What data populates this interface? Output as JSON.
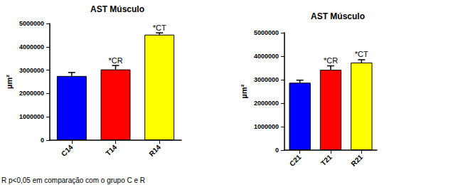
{
  "chart_data": [
    {
      "type": "bar",
      "title": "AST Músculo",
      "y_label": "µm²",
      "categories": [
        "C14",
        "T14",
        "R14"
      ],
      "values": [
        2750000,
        3030000,
        4520000
      ],
      "errors": [
        150000,
        170000,
        80000
      ],
      "colors": [
        "#0000ff",
        "#ff0000",
        "#ffff00"
      ],
      "ylim": [
        0,
        5000000
      ],
      "yticks": [
        0,
        1000000,
        2000000,
        3000000,
        4000000,
        5000000
      ],
      "annotations": [
        {
          "category": "T14",
          "text": "*CR"
        },
        {
          "category": "R14",
          "text": "*CT"
        }
      ],
      "grid": false
    },
    {
      "type": "bar",
      "title": "AST Músculo",
      "y_label": "µm²",
      "categories": [
        "C21",
        "T21",
        "R21"
      ],
      "values": [
        2870000,
        3420000,
        3730000
      ],
      "errors": [
        110000,
        170000,
        120000
      ],
      "colors": [
        "#0000ff",
        "#ff0000",
        "#ffff00"
      ],
      "ylim": [
        0,
        5000000
      ],
      "yticks": [
        0,
        1000000,
        2000000,
        3000000,
        4000000,
        5000000
      ],
      "annotations": [
        {
          "category": "T21",
          "text": "*CR"
        },
        {
          "category": "R21",
          "text": "*CT"
        }
      ],
      "grid": false
    }
  ],
  "footnote": "R p<0,05 em comparação com o grupo C e R"
}
